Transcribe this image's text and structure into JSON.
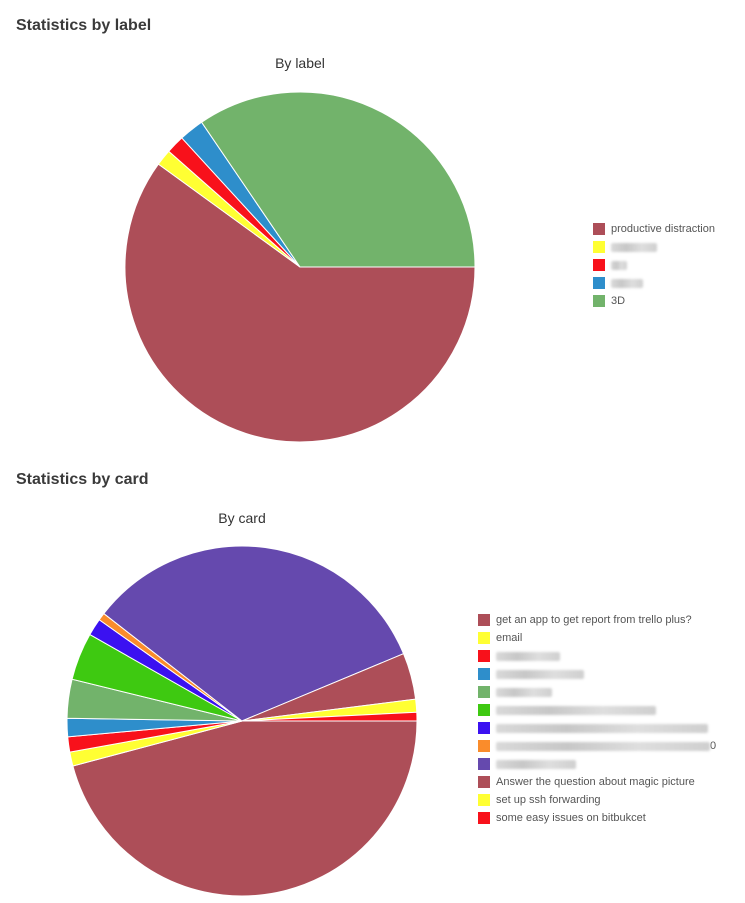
{
  "charts": [
    {
      "section_title": "Statistics by label",
      "chart_title": "By label",
      "chart_data": {
        "type": "pie",
        "title": "By label",
        "slices": [
          {
            "label": "productive distraction",
            "value": 60.0,
            "color": "#ad4e58",
            "redacted": false
          },
          {
            "label": "",
            "value": 1.5,
            "color": "#ffff33",
            "redacted": true
          },
          {
            "label": "",
            "value": 1.7,
            "color": "#f8111b",
            "redacted": true
          },
          {
            "label": "",
            "value": 2.3,
            "color": "#2e8ecb",
            "redacted": true
          },
          {
            "label": "3D",
            "value": 34.5,
            "color": "#72b36b",
            "redacted": false
          }
        ],
        "legend_position": "right"
      }
    },
    {
      "section_title": "Statistics by card",
      "chart_title": "By card",
      "chart_data": {
        "type": "pie",
        "title": "By card",
        "slices": [
          {
            "label": "",
            "value": 46.0,
            "color": "#ad4e58",
            "redacted": true
          },
          {
            "label": "",
            "value": 1.3,
            "color": "#ffff33",
            "redacted": true
          },
          {
            "label": "",
            "value": 1.4,
            "color": "#f8111b",
            "redacted": true
          },
          {
            "label": "",
            "value": 1.7,
            "color": "#2e8ecb",
            "redacted": true
          },
          {
            "label": "",
            "value": 3.6,
            "color": "#72b36b",
            "redacted": true
          },
          {
            "label": "",
            "value": 4.4,
            "color": "#3ec911",
            "redacted": true
          },
          {
            "label": "",
            "value": 1.6,
            "color": "#3b11f1",
            "redacted": true
          },
          {
            "label": "",
            "value": 0.7,
            "color": "#fa8c2b",
            "redacted": true
          },
          {
            "label": "",
            "value": 33.3,
            "color": "#6549ae",
            "redacted": true
          },
          {
            "label": "",
            "value": 4.3,
            "color": "#ad4e58",
            "redacted": true
          },
          {
            "label": "",
            "value": 1.2,
            "color": "#ffff33",
            "redacted": true
          },
          {
            "label": "",
            "value": 0.8,
            "color": "#f8111b",
            "redacted": true
          }
        ],
        "legend_items": [
          {
            "label": "get an app to get report from trello plus?",
            "color": "#ad4e58",
            "redacted": false
          },
          {
            "label": "email",
            "color": "#ffff33",
            "redacted": false
          },
          {
            "label": "",
            "color": "#f8111b",
            "redacted": true
          },
          {
            "label": "",
            "color": "#2e8ecb",
            "redacted": true
          },
          {
            "label": "",
            "color": "#72b36b",
            "redacted": true
          },
          {
            "label": "",
            "color": "#3ec911",
            "redacted": true
          },
          {
            "label": "",
            "color": "#3b11f1",
            "redacted": true
          },
          {
            "label": "0",
            "color": "#fa8c2b",
            "redacted": true
          },
          {
            "label": "",
            "color": "#6549ae",
            "redacted": true
          },
          {
            "label": "Answer the question about magic picture",
            "color": "#ad4e58",
            "redacted": false
          },
          {
            "label": "set up ssh forwarding",
            "color": "#ffff33",
            "redacted": false
          },
          {
            "label": "some easy issues on bitbukcet",
            "color": "#f8111b",
            "redacted": false
          }
        ],
        "legend_position": "right"
      }
    }
  ]
}
